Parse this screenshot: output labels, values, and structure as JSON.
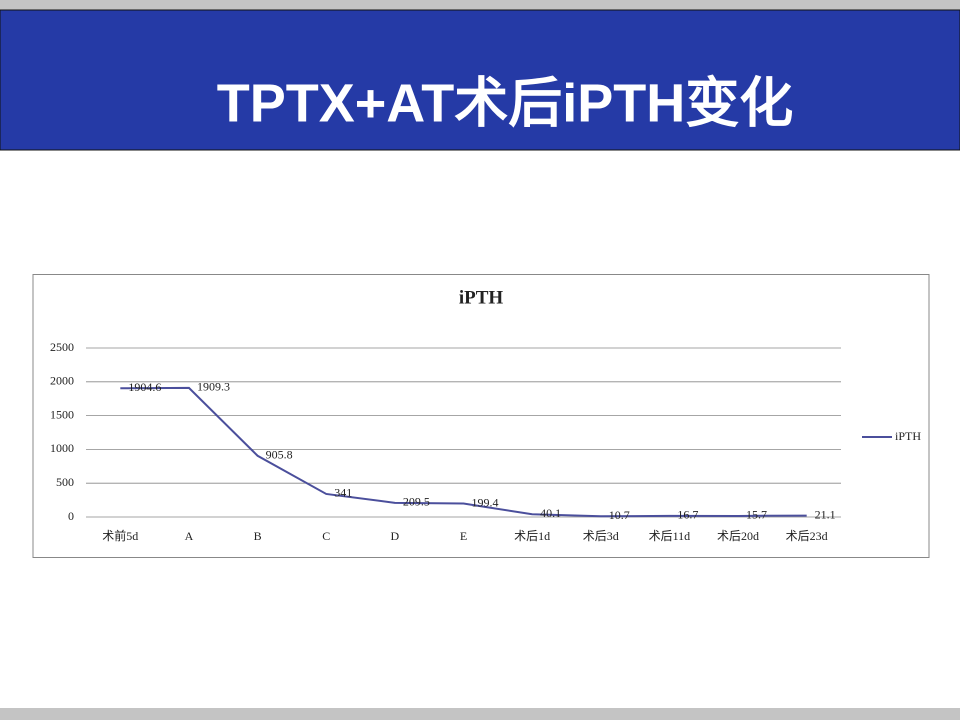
{
  "slide_title": "TPTX+AT术后iPTH变化",
  "chart_data": {
    "type": "line",
    "title": "iPTH",
    "categories": [
      "术前5d",
      "A",
      "B",
      "C",
      "D",
      "E",
      "术后1d",
      "术后3d",
      "术后11d",
      "术后20d",
      "术后23d"
    ],
    "series": [
      {
        "name": "iPTH",
        "color": "#4b4f9c",
        "values": [
          1904.6,
          1909.3,
          905.8,
          341,
          209.5,
          199.4,
          40.1,
          10.7,
          16.7,
          15.7,
          21.1
        ]
      }
    ],
    "ylim": [
      0,
      2500
    ],
    "yticks": [
      0,
      500,
      1000,
      1500,
      2000,
      2500
    ],
    "grid": true,
    "legend": "right"
  }
}
